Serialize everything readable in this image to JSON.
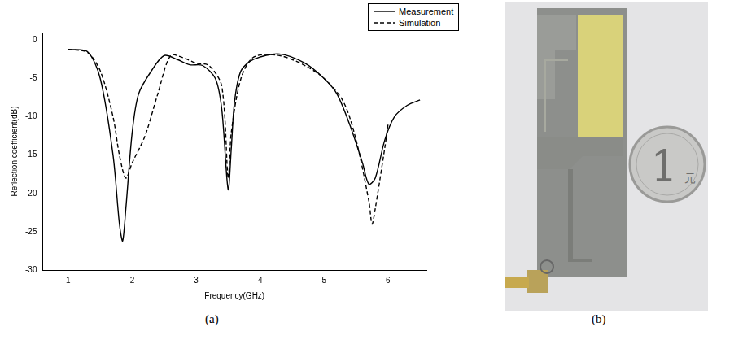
{
  "chart_data": {
    "type": "line",
    "xlabel": "Frequency(GHz)",
    "ylabel": "Reflection coefficient(dB)",
    "xlim": [
      0.6,
      6.6
    ],
    "xticks": [
      1,
      2,
      3,
      4,
      5,
      6
    ],
    "ylim": [
      -30,
      1
    ],
    "yticks": [
      -30,
      -25,
      -20,
      -15,
      -10,
      -5,
      0
    ],
    "grid": false,
    "legend": "upper right",
    "series": [
      {
        "name": "Measurement",
        "color": "#000000",
        "line_style": "solid",
        "x": [
          1,
          1.3,
          1.5,
          1.7,
          1.8,
          1.85,
          1.9,
          2.0,
          2.1,
          2.3,
          2.5,
          2.7,
          2.9,
          3.1,
          3.3,
          3.4,
          3.5,
          3.55,
          3.6,
          3.7,
          3.9,
          4.3,
          4.7,
          5.0,
          5.2,
          5.4,
          5.6,
          5.7,
          5.8,
          5.95,
          6.1,
          6.3,
          6.5
        ],
        "values": [
          -1.2,
          -1.5,
          -5,
          -15,
          -24,
          -26.2,
          -22,
          -12,
          -7,
          -4,
          -2,
          -2.5,
          -3.2,
          -3.3,
          -5,
          -9,
          -19.5,
          -14,
          -8,
          -4,
          -2.5,
          -1.8,
          -3,
          -5,
          -7,
          -11,
          -16,
          -18.8,
          -18,
          -13,
          -10,
          -8.5,
          -7.8
        ]
      },
      {
        "name": "Simulation",
        "color": "#000000",
        "line_style": "dashed",
        "x": [
          1,
          1.3,
          1.5,
          1.7,
          1.8,
          1.9,
          2.0,
          2.2,
          2.4,
          2.6,
          2.8,
          3.0,
          3.2,
          3.4,
          3.5,
          3.55,
          3.7,
          3.9,
          4.3,
          4.7,
          5.0,
          5.3,
          5.5,
          5.7,
          5.75,
          5.8,
          5.95,
          6.0
        ],
        "values": [
          -1.2,
          -1.6,
          -4,
          -10,
          -15,
          -18,
          -16,
          -12.5,
          -7,
          -2,
          -2.3,
          -3,
          -3.3,
          -6,
          -18,
          -12,
          -5,
          -2.2,
          -2,
          -3.3,
          -5,
          -8,
          -13,
          -21,
          -24,
          -22,
          -14,
          -11
        ]
      }
    ]
  },
  "panels": {
    "a": "(a)",
    "b": "(b)"
  },
  "photo": {
    "coin_texts": [
      "1",
      "元"
    ]
  }
}
